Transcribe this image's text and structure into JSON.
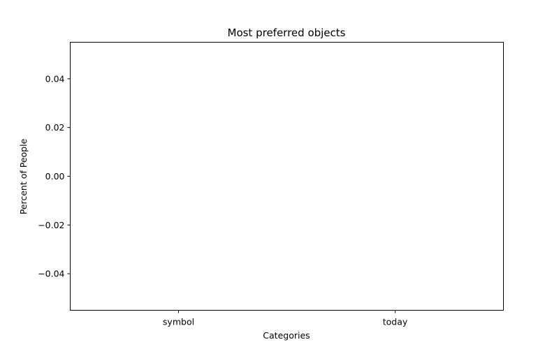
{
  "chart_data": {
    "type": "bar",
    "title": "Most preferred objects",
    "xlabel": "Categories",
    "ylabel": "Percent of People",
    "categories": [
      "symbol",
      "today"
    ],
    "values": [
      0,
      0
    ],
    "ylim": [
      -0.055,
      0.055
    ],
    "yticks": [
      -0.04,
      -0.02,
      0.0,
      0.02,
      0.04
    ],
    "ytick_labels": [
      "−0.04",
      "−0.02",
      "0.00",
      "0.02",
      "0.04"
    ],
    "grid": false,
    "colors": {
      "axis": "#000000",
      "background": "#ffffff",
      "bar": "#1f77b4"
    }
  }
}
